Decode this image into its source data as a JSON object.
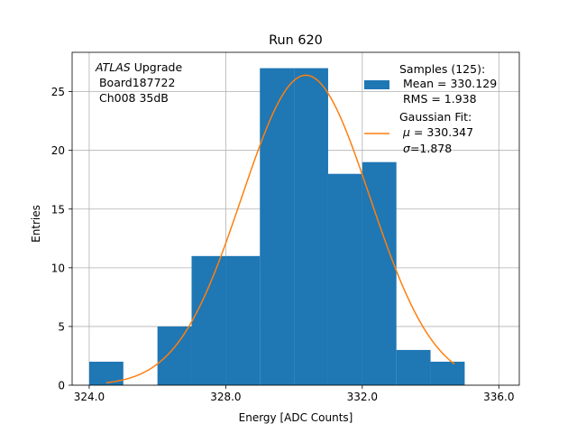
{
  "chart_data": {
    "type": "bar",
    "title": "Run 620",
    "xlabel": "Energy [ADC Counts]",
    "ylabel": "Entries",
    "xlim": [
      23.5,
      36.6
    ],
    "ylim": [
      0,
      28.35
    ],
    "x_tick_values": [
      24,
      28,
      32,
      36
    ],
    "x_tick_labels": [
      "324.0",
      "328.0",
      "332.0",
      "336.0"
    ],
    "y_ticks": [
      0,
      5,
      10,
      15,
      20,
      25
    ],
    "grid": true,
    "bins": [
      {
        "x0": 24,
        "x1": 25,
        "value": 2
      },
      {
        "x0": 25,
        "x1": 26,
        "value": 0
      },
      {
        "x0": 26,
        "x1": 27,
        "value": 5
      },
      {
        "x0": 27,
        "x1": 28,
        "value": 11
      },
      {
        "x0": 28,
        "x1": 29,
        "value": 11
      },
      {
        "x0": 29,
        "x1": 30,
        "value": 27
      },
      {
        "x0": 30,
        "x1": 31,
        "value": 27
      },
      {
        "x0": 31,
        "x1": 32,
        "value": 18
      },
      {
        "x0": 32,
        "x1": 33,
        "value": 19
      },
      {
        "x0": 33,
        "x1": 34,
        "value": 3
      },
      {
        "x0": 34,
        "x1": 35,
        "value": 2
      }
    ],
    "fit": {
      "amplitude": 26.4,
      "mean": 30.347,
      "sigma": 1.878,
      "x_range": [
        24.5,
        34.7
      ]
    },
    "bar_color": "#1f77b4",
    "fit_color": "#ff7f0e",
    "annotation": {
      "italic": "ATLAS",
      "rest": " Upgrade",
      "line2": " Board187722",
      "line3": " Ch008 35dB"
    },
    "legend": {
      "position": "top-right",
      "samples_line1": "Samples (125):",
      "samples_line2": " Mean = 330.129",
      "samples_line3": " RMS = 1.938",
      "fit_line1": "Gaussian Fit:",
      "fit_line2_sym": "μ",
      "fit_line2_val": " = 330.347",
      "fit_line3_sym": "σ",
      "fit_line3_val": "=1.878"
    }
  }
}
